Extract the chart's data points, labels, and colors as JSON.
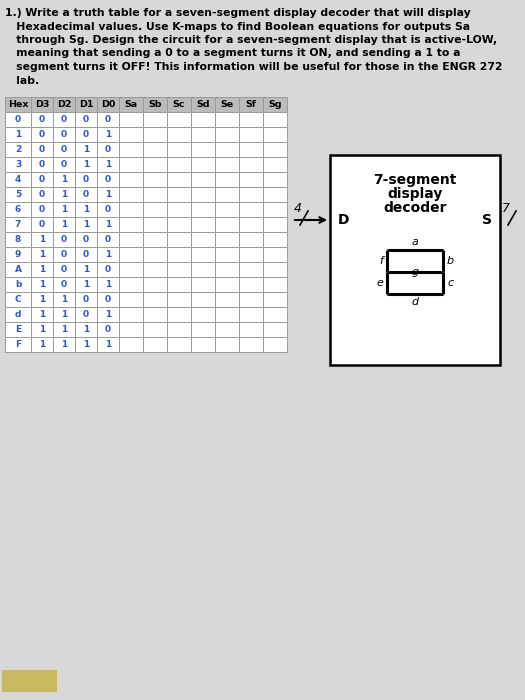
{
  "title_lines": [
    "1.) Write a truth table for a seven-segment display decoder that will display",
    "   Hexadecimal values. Use K-maps to find Boolean equations for outputs Sa",
    "   through Sg. Design the circuit for a seven-segment display that is active-LOW,",
    "   meaning that sending a 0 to a segment turns it ON, and sending a 1 to a",
    "   segment turns it OFF! This information will be useful for those in the ENGR 272",
    "   lab."
  ],
  "col_headers": [
    "Hex",
    "D3",
    "D2",
    "D1",
    "D0",
    "Sa",
    "Sb",
    "Sc",
    "Sd",
    "Se",
    "Sf",
    "Sg"
  ],
  "rows": [
    [
      "0",
      "0",
      "0",
      "0",
      "0",
      "",
      "",
      "",
      "",
      "",
      "",
      ""
    ],
    [
      "1",
      "0",
      "0",
      "0",
      "1",
      "",
      "",
      "",
      "",
      "",
      "",
      ""
    ],
    [
      "2",
      "0",
      "0",
      "1",
      "0",
      "",
      "",
      "",
      "",
      "",
      "",
      ""
    ],
    [
      "3",
      "0",
      "0",
      "1",
      "1",
      "",
      "",
      "",
      "",
      "",
      "",
      ""
    ],
    [
      "4",
      "0",
      "1",
      "0",
      "0",
      "",
      "",
      "",
      "",
      "",
      "",
      ""
    ],
    [
      "5",
      "0",
      "1",
      "0",
      "1",
      "",
      "",
      "",
      "",
      "",
      "",
      ""
    ],
    [
      "6",
      "0",
      "1",
      "1",
      "0",
      "",
      "",
      "",
      "",
      "",
      "",
      ""
    ],
    [
      "7",
      "0",
      "1",
      "1",
      "1",
      "",
      "",
      "",
      "",
      "",
      "",
      ""
    ],
    [
      "8",
      "1",
      "0",
      "0",
      "0",
      "",
      "",
      "",
      "",
      "",
      "",
      ""
    ],
    [
      "9",
      "1",
      "0",
      "0",
      "1",
      "",
      "",
      "",
      "",
      "",
      "",
      ""
    ],
    [
      "A",
      "1",
      "0",
      "1",
      "0",
      "",
      "",
      "",
      "",
      "",
      "",
      ""
    ],
    [
      "b",
      "1",
      "0",
      "1",
      "1",
      "",
      "",
      "",
      "",
      "",
      "",
      ""
    ],
    [
      "C",
      "1",
      "1",
      "0",
      "0",
      "",
      "",
      "",
      "",
      "",
      "",
      ""
    ],
    [
      "d",
      "1",
      "1",
      "0",
      "1",
      "",
      "",
      "",
      "",
      "",
      "",
      ""
    ],
    [
      "E",
      "1",
      "1",
      "1",
      "0",
      "",
      "",
      "",
      "",
      "",
      "",
      ""
    ],
    [
      "F",
      "1",
      "1",
      "1",
      "1",
      "",
      "",
      "",
      "",
      "",
      "",
      ""
    ]
  ],
  "hex_color": "#3355cc",
  "data_color": "#3355cc",
  "header_bg": "#bbbbbb",
  "bg_color": "#d8d8d8",
  "table_line_color": "#999999",
  "decoder_box_label": "7-segment\ndisplay\ndecoder",
  "input_label": "D",
  "output_label": "S",
  "input_bus": "4/",
  "output_bus": "7/",
  "title_fontsize": 7.8,
  "header_fontsize": 6.8,
  "cell_fontsize": 6.5
}
